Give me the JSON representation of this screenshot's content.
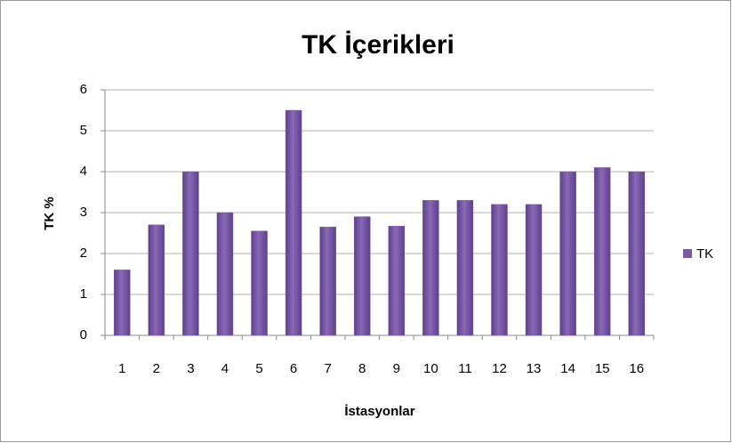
{
  "chart_data": {
    "type": "bar",
    "title": "TK İçerikleri",
    "x_label": "İstasyonlar",
    "y_label": "TK %",
    "categories": [
      "1",
      "2",
      "3",
      "4",
      "5",
      "6",
      "7",
      "8",
      "9",
      "10",
      "11",
      "12",
      "13",
      "14",
      "15",
      "16"
    ],
    "series": [
      {
        "name": "TK",
        "color": "#7b5aa6",
        "values": [
          1.6,
          2.7,
          4.0,
          3.0,
          2.55,
          5.5,
          2.65,
          2.9,
          2.67,
          3.3,
          3.3,
          3.2,
          3.2,
          4.0,
          4.1,
          4.0
        ]
      }
    ],
    "ylim": [
      0,
      6
    ],
    "yticks": [
      0,
      1,
      2,
      3,
      4,
      5,
      6
    ],
    "grid": true,
    "legend": "right"
  }
}
